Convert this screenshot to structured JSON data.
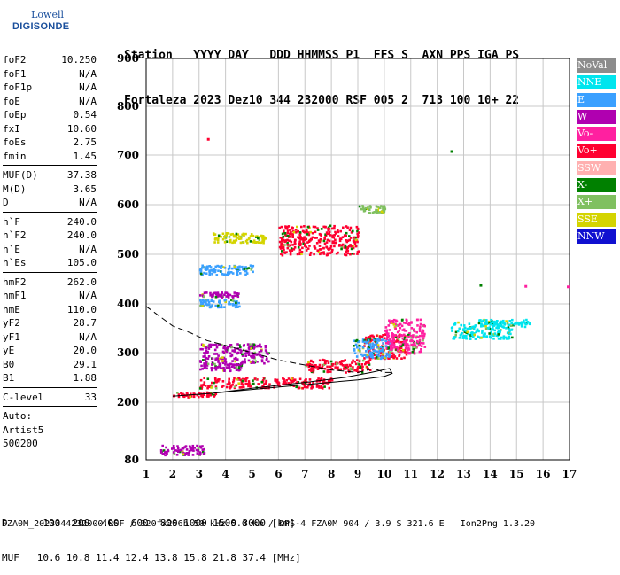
{
  "logo": {
    "line1": "Lowell",
    "line2": "DIGISONDE"
  },
  "header": {
    "labels": "Station   YYYY DAY   DDD HHMMSS P1  FFS S  AXN PPS IGA PS",
    "values": "Fortaleza 2023 Dez10 344 232000 RSF 005 2  713 100 10+ 22"
  },
  "params": [
    {
      "type": "row",
      "k": "foF2",
      "v": "10.250"
    },
    {
      "type": "row",
      "k": "foF1",
      "v": "N/A"
    },
    {
      "type": "row",
      "k": "foF1p",
      "v": "N/A"
    },
    {
      "type": "row",
      "k": "foE",
      "v": "N/A"
    },
    {
      "type": "row",
      "k": "foEp",
      "v": "0.54"
    },
    {
      "type": "row",
      "k": "fxI",
      "v": "10.60"
    },
    {
      "type": "row",
      "k": "foEs",
      "v": "2.75"
    },
    {
      "type": "row",
      "k": "fmin",
      "v": "1.45"
    },
    {
      "type": "sep"
    },
    {
      "type": "row",
      "k": "MUF(D)",
      "v": "37.38"
    },
    {
      "type": "row",
      "k": "M(D)",
      "v": "3.65"
    },
    {
      "type": "row",
      "k": "D",
      "v": "N/A"
    },
    {
      "type": "sep"
    },
    {
      "type": "row",
      "k": "h`F",
      "v": "240.0"
    },
    {
      "type": "row",
      "k": "h`F2",
      "v": "240.0"
    },
    {
      "type": "row",
      "k": "h`E",
      "v": "N/A"
    },
    {
      "type": "row",
      "k": "h`Es",
      "v": "105.0"
    },
    {
      "type": "sep"
    },
    {
      "type": "row",
      "k": "hmF2",
      "v": "262.0"
    },
    {
      "type": "row",
      "k": "hmF1",
      "v": "N/A"
    },
    {
      "type": "row",
      "k": "hmE",
      "v": "110.0"
    },
    {
      "type": "row",
      "k": "yF2",
      "v": "28.7"
    },
    {
      "type": "row",
      "k": "yF1",
      "v": "N/A"
    },
    {
      "type": "row",
      "k": "yE",
      "v": "20.0"
    },
    {
      "type": "row",
      "k": "B0",
      "v": "29.1"
    },
    {
      "type": "row",
      "k": "B1",
      "v": "1.88"
    },
    {
      "type": "sep"
    },
    {
      "type": "row",
      "k": "C-level",
      "v": "33"
    },
    {
      "type": "sep"
    },
    {
      "type": "plain",
      "k": "Auto:"
    },
    {
      "type": "plain",
      "k": "Artist5"
    },
    {
      "type": "plain",
      "k": "500200"
    }
  ],
  "legend": [
    {
      "label": "NoVal",
      "color": "#8c8c8c"
    },
    {
      "label": "NNE",
      "color": "#00e5ee"
    },
    {
      "label": "E",
      "color": "#3aa0ff"
    },
    {
      "label": "W",
      "color": "#b000b0"
    },
    {
      "label": "Vo-",
      "color": "#ff20a0"
    },
    {
      "label": "Vo+",
      "color": "#ff0030"
    },
    {
      "label": "SSW",
      "color": "#ffb0b0"
    },
    {
      "label": "X-",
      "color": "#008000"
    },
    {
      "label": "X+",
      "color": "#80c060"
    },
    {
      "label": "SSE",
      "color": "#d4d400"
    },
    {
      "label": "NNW",
      "color": "#1010d0"
    }
  ],
  "footer": {
    "line1": "D      100  200  400  600  800 1000 1500 3000 [km]",
    "line2": "MUF   10.6 10.8 11.4 12.4 13.8 15.8 21.8 37.4 [MHz]",
    "line3": "FZA0M_2023344232000.RSF / 320fx256h 50 kHz 5.0 km / DPS-4 FZA0M 904 / 3.9 S 321.6 E   Ion2Png 1.3.20"
  },
  "chart_data": {
    "type": "scatter",
    "xlim": [
      1,
      17
    ],
    "ylim": [
      80,
      900
    ],
    "x_ticks": [
      1,
      2,
      3,
      4,
      5,
      6,
      7,
      8,
      9,
      10,
      11,
      12,
      13,
      14,
      15,
      16,
      17
    ],
    "y_ticks": [
      80,
      200,
      300,
      400,
      500,
      600,
      700,
      800,
      900
    ],
    "grid": true,
    "clusters": [
      {
        "legend": "Vo+",
        "x": [
          2.0,
          3.6
        ],
        "y": [
          212,
          222
        ]
      },
      {
        "legend": "Vo+",
        "x": [
          3.0,
          8.0
        ],
        "y": [
          230,
          252
        ]
      },
      {
        "legend": "Vo+",
        "x": [
          7.0,
          9.5
        ],
        "y": [
          262,
          288
        ]
      },
      {
        "legend": "Vo+",
        "x": [
          9.2,
          10.8
        ],
        "y": [
          290,
          340
        ]
      },
      {
        "legend": "W",
        "x": [
          1.5,
          3.2
        ],
        "y": [
          92,
          112
        ]
      },
      {
        "legend": "W",
        "x": [
          3.0,
          5.6
        ],
        "y": [
          280,
          320
        ]
      },
      {
        "legend": "W",
        "x": [
          3.0,
          4.6
        ],
        "y": [
          265,
          280
        ]
      },
      {
        "legend": "E",
        "x": [
          8.8,
          10.2
        ],
        "y": [
          290,
          330
        ]
      },
      {
        "legend": "Vo-",
        "x": [
          10.0,
          11.5
        ],
        "y": [
          300,
          370
        ]
      },
      {
        "legend": "NNE",
        "x": [
          12.5,
          14.8
        ],
        "y": [
          330,
          365
        ]
      },
      {
        "legend": "E",
        "x": [
          3.0,
          5.0
        ],
        "y": [
          460,
          480
        ]
      },
      {
        "legend": "SSE",
        "x": [
          3.5,
          5.5
        ],
        "y": [
          525,
          545
        ]
      },
      {
        "legend": "Vo+",
        "x": [
          6.0,
          9.0
        ],
        "y": [
          500,
          560
        ]
      },
      {
        "legend": "W",
        "x": [
          3.0,
          4.5
        ],
        "y": [
          415,
          425
        ]
      },
      {
        "legend": "E",
        "x": [
          3.0,
          4.5
        ],
        "y": [
          395,
          410
        ]
      },
      {
        "legend": "X+",
        "x": [
          9.0,
          10.0
        ],
        "y": [
          585,
          600
        ]
      },
      {
        "legend": "NNE",
        "x": [
          13.5,
          15.5
        ],
        "y": [
          355,
          370
        ]
      }
    ],
    "curves": [
      {
        "style": "solid",
        "x": [
          2.0,
          3.5,
          5.0,
          7.0,
          8.5,
          9.5,
          10.2,
          10.3,
          10.0,
          9.0,
          7.5,
          5.5,
          3.5,
          2.0
        ],
        "y": [
          212,
          218,
          228,
          240,
          250,
          260,
          268,
          258,
          252,
          245,
          238,
          228,
          218,
          212
        ]
      },
      {
        "style": "dashed",
        "x": [
          1.0,
          1.5,
          2.0,
          2.7,
          3.3,
          4.0,
          5.0,
          6.0,
          7.0,
          8.0,
          9.0,
          9.6,
          10.0,
          10.4
        ],
        "y": [
          395,
          375,
          355,
          340,
          325,
          315,
          300,
          285,
          275,
          265,
          260,
          268,
          260,
          260
        ]
      }
    ]
  }
}
